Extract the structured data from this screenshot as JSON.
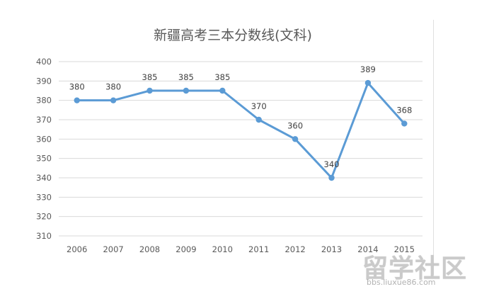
{
  "chart_data": {
    "type": "line",
    "title": "新疆高考三本分数线(文科)",
    "categories": [
      "2006",
      "2007",
      "2008",
      "2009",
      "2010",
      "2011",
      "2012",
      "2013",
      "2014",
      "2015"
    ],
    "values": [
      380,
      380,
      385,
      385,
      385,
      370,
      360,
      340,
      389,
      368
    ],
    "ylim": [
      310,
      400
    ],
    "yticks": [
      "310",
      "320",
      "330",
      "340",
      "350",
      "360",
      "370",
      "380",
      "390",
      "400"
    ],
    "grid": true,
    "line_color": "#5b9bd5",
    "grid_color": "#d9d9d9"
  },
  "watermark": {
    "text": "留学社区",
    "url": "bbs.liuxue86.com"
  }
}
